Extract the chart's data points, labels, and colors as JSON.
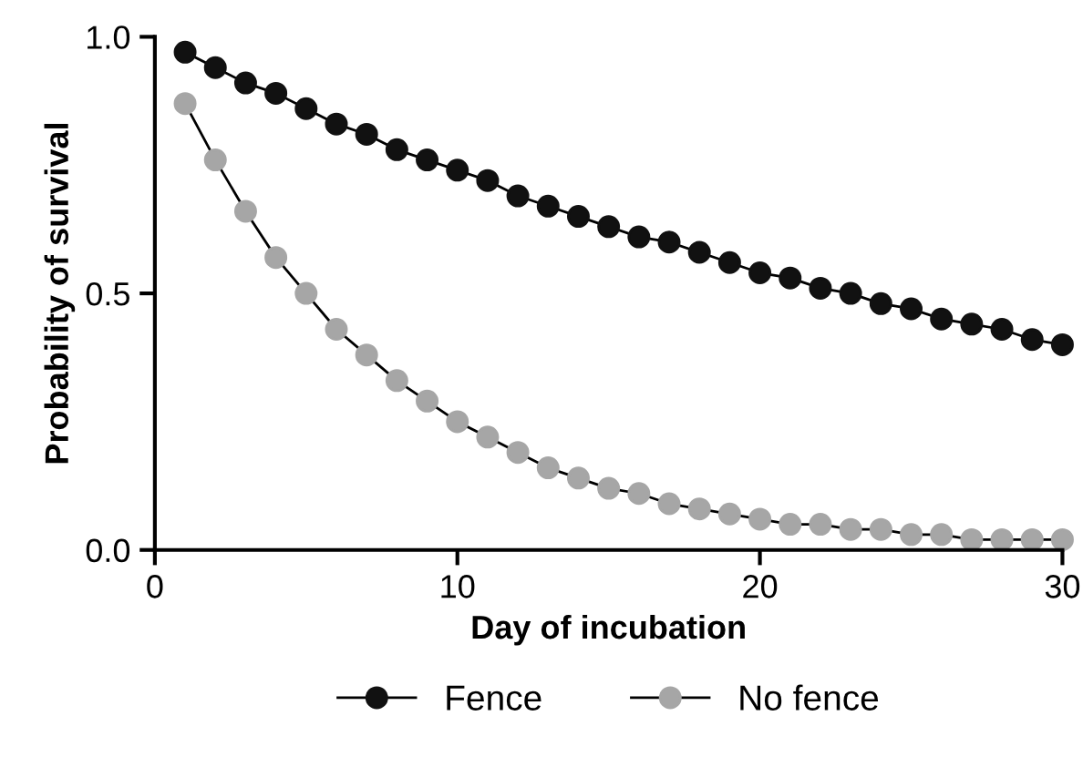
{
  "chart_data": {
    "type": "line",
    "xlabel": "Day of incubation",
    "ylabel": "Probability of survival",
    "x": [
      1,
      2,
      3,
      4,
      5,
      6,
      7,
      8,
      9,
      10,
      11,
      12,
      13,
      14,
      15,
      16,
      17,
      18,
      19,
      20,
      21,
      22,
      23,
      24,
      25,
      26,
      27,
      28,
      29,
      30
    ],
    "series": [
      {
        "name": "Fence",
        "color": "#111111",
        "values": [
          0.97,
          0.94,
          0.91,
          0.89,
          0.86,
          0.83,
          0.81,
          0.78,
          0.76,
          0.74,
          0.72,
          0.69,
          0.67,
          0.65,
          0.63,
          0.61,
          0.6,
          0.58,
          0.56,
          0.54,
          0.53,
          0.51,
          0.5,
          0.48,
          0.47,
          0.45,
          0.44,
          0.43,
          0.41,
          0.4
        ]
      },
      {
        "name": "No fence",
        "color": "#a6a6a6",
        "values": [
          0.87,
          0.76,
          0.66,
          0.57,
          0.5,
          0.43,
          0.38,
          0.33,
          0.29,
          0.25,
          0.22,
          0.19,
          0.16,
          0.14,
          0.12,
          0.11,
          0.09,
          0.08,
          0.07,
          0.06,
          0.05,
          0.05,
          0.04,
          0.04,
          0.03,
          0.03,
          0.02,
          0.02,
          0.02,
          0.02
        ]
      }
    ],
    "xlim": [
      0,
      30
    ],
    "xticks": [
      0,
      10,
      20,
      30
    ],
    "ylim": [
      0,
      1.0
    ],
    "yticks": [
      {
        "value": 0,
        "label": "0.0"
      },
      {
        "value": 0.5,
        "label": "0.5"
      },
      {
        "value": 1.0,
        "label": "1.0"
      }
    ],
    "marker": "circle",
    "line_style": "solid",
    "grid": false,
    "legend": "bottom"
  }
}
